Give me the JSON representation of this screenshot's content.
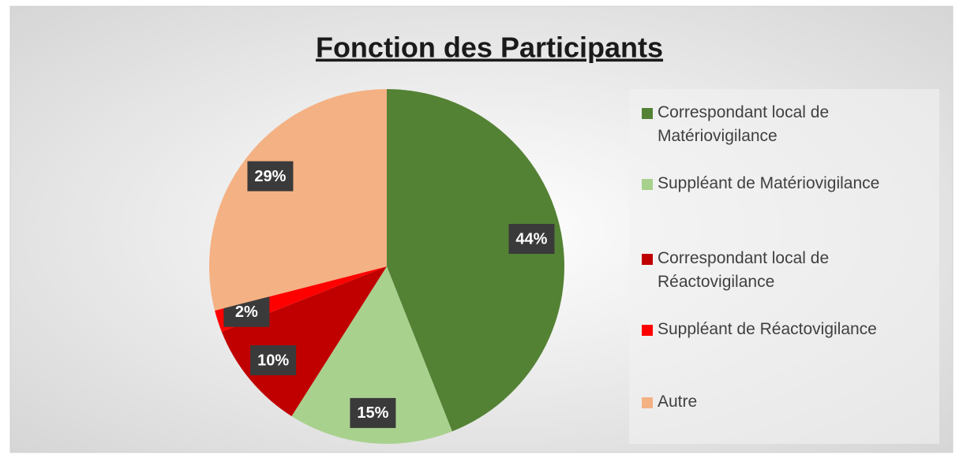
{
  "chart_data": {
    "type": "pie",
    "title": "Fonction des Participants",
    "categories": [
      "Correspondant local de Matériovigilance",
      "Suppléant de Matériovigilance",
      "Correspondant local de Réactovigilance",
      "Suppléant de Réactovigilance",
      "Autre"
    ],
    "values": [
      44,
      15,
      10,
      2,
      29
    ],
    "value_labels": [
      "44%",
      "15%",
      "10%",
      "2%",
      "29%"
    ],
    "colors": [
      "#548235",
      "#a9d18e",
      "#c00000",
      "#ff0000",
      "#f4b183"
    ],
    "legend": "right"
  }
}
